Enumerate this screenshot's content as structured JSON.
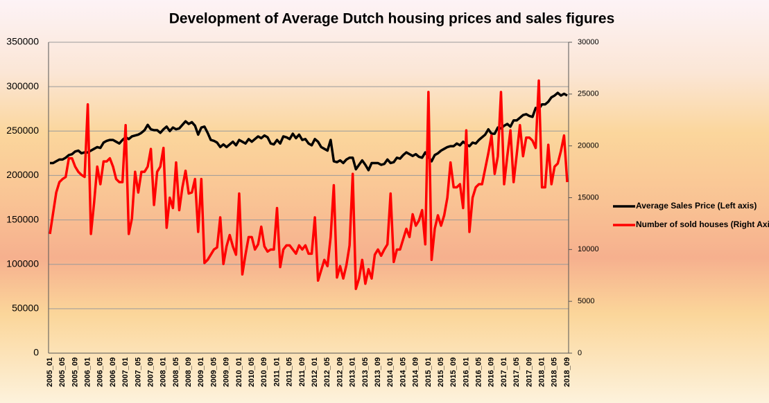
{
  "chart_data": {
    "type": "line",
    "title": "Development of Average Dutch housing prices and sales figures",
    "categories": [
      "2005_01",
      null,
      null,
      null,
      "2005_05",
      null,
      null,
      null,
      "2005_09",
      null,
      null,
      null,
      "2006_01",
      null,
      null,
      null,
      "2006_05",
      null,
      null,
      null,
      "2006_09",
      null,
      null,
      null,
      "2007_01",
      null,
      null,
      null,
      "2007_05",
      null,
      null,
      null,
      "2007_09",
      null,
      null,
      null,
      "2008_01",
      null,
      null,
      null,
      "2008_05",
      null,
      null,
      null,
      "2008_09",
      null,
      null,
      null,
      "2009_01",
      null,
      null,
      null,
      "2009_05",
      null,
      null,
      null,
      "2009_09",
      null,
      null,
      null,
      "2010_01",
      null,
      null,
      null,
      "2010_05",
      null,
      null,
      null,
      "2010_09",
      null,
      null,
      null,
      "2011_01",
      null,
      null,
      null,
      "2011_05",
      null,
      null,
      null,
      "2011_09",
      null,
      null,
      null,
      "2012_01",
      null,
      null,
      null,
      "2012_05",
      null,
      null,
      null,
      "2012_09",
      null,
      null,
      null,
      "2013_01",
      null,
      null,
      null,
      "2013_05",
      null,
      null,
      null,
      "2013_09",
      null,
      null,
      null,
      "2014_01",
      null,
      null,
      null,
      "2014_05",
      null,
      null,
      null,
      "2014_09",
      null,
      null,
      null,
      "2015_01",
      null,
      null,
      null,
      "2015_05",
      null,
      null,
      null,
      "2015_09",
      null,
      null,
      null,
      "2016_01",
      null,
      null,
      null,
      "2016_05",
      null,
      null,
      null,
      "2016_09",
      null,
      null,
      null,
      "2017_01",
      null,
      null,
      null,
      "2017_05",
      null,
      null,
      null,
      "2017_09",
      null,
      null,
      null,
      "2018_01",
      null,
      null,
      null,
      "2018_05",
      null,
      null,
      null,
      "2018_09"
    ],
    "series": [
      {
        "name": "Average Sales Price (Left axis)",
        "color": "#000000",
        "values": [
          214000,
          214000,
          216000,
          218000,
          218000,
          220000,
          223000,
          224000,
          227000,
          228000,
          225000,
          226000,
          226000,
          228000,
          230000,
          232000,
          231000,
          237000,
          239000,
          240000,
          240000,
          238000,
          236000,
          240000,
          243000,
          241000,
          244000,
          245000,
          246000,
          248000,
          251000,
          257000,
          252000,
          251000,
          251000,
          248000,
          252000,
          255000,
          250000,
          254000,
          252000,
          253000,
          257000,
          261000,
          258000,
          260000,
          256000,
          246000,
          254000,
          255000,
          248000,
          240000,
          239000,
          237000,
          232000,
          235000,
          232000,
          235000,
          238000,
          234000,
          240000,
          238000,
          236000,
          241000,
          238000,
          241000,
          244000,
          242000,
          245000,
          243000,
          236000,
          235000,
          240000,
          236000,
          244000,
          243000,
          241000,
          247000,
          242000,
          246000,
          240000,
          241000,
          236000,
          234000,
          241000,
          238000,
          232000,
          230000,
          228000,
          240000,
          216000,
          215000,
          217000,
          214000,
          218000,
          220000,
          220000,
          207000,
          212000,
          217000,
          212000,
          206000,
          214000,
          214000,
          214000,
          212000,
          213000,
          218000,
          214000,
          215000,
          220000,
          219000,
          223000,
          226000,
          224000,
          222000,
          224000,
          221000,
          220000,
          226000,
          221000,
          216000,
          223000,
          225000,
          228000,
          230000,
          232000,
          233000,
          233000,
          236000,
          234000,
          238000,
          235000,
          233000,
          237000,
          236000,
          240000,
          243000,
          246000,
          252000,
          247000,
          247000,
          254000,
          253000,
          256000,
          258000,
          255000,
          262000,
          262000,
          265000,
          268000,
          269000,
          267000,
          266000,
          276000,
          275000,
          280000,
          280000,
          283000,
          288000,
          290000,
          293000,
          290000,
          292000,
          290000
        ]
      },
      {
        "name": "Number of sold houses (Right Axis)",
        "color": "#ff0000",
        "axis": "y2",
        "values": [
          11500,
          13500,
          15500,
          16500,
          16800,
          17000,
          18800,
          18800,
          18000,
          17500,
          17200,
          17000,
          24000,
          11500,
          14500,
          18000,
          16300,
          18500,
          18500,
          18800,
          18000,
          16800,
          16500,
          16500,
          22000,
          11500,
          13000,
          17500,
          15500,
          17500,
          17500,
          18000,
          19700,
          14300,
          17500,
          18000,
          19800,
          12100,
          15000,
          14000,
          18400,
          13800,
          16000,
          17600,
          15400,
          15500,
          16800,
          11700,
          16800,
          8700,
          9000,
          9500,
          10000,
          10200,
          13100,
          8600,
          10300,
          11400,
          10300,
          9500,
          15400,
          7600,
          9500,
          11200,
          11200,
          10000,
          10500,
          12200,
          10300,
          9800,
          10000,
          10000,
          14000,
          8300,
          10000,
          10400,
          10400,
          10000,
          9600,
          10400,
          10000,
          10400,
          9600,
          9600,
          13100,
          7000,
          8000,
          9000,
          8400,
          11200,
          16200,
          7300,
          8400,
          7200,
          8500,
          10400,
          17300,
          6200,
          7200,
          9000,
          6700,
          8100,
          7200,
          9500,
          10000,
          9400,
          10000,
          10500,
          15400,
          8800,
          10000,
          10000,
          11000,
          12000,
          11200,
          13400,
          12300,
          12800,
          13800,
          10500,
          25200,
          9000,
          12000,
          13300,
          12300,
          13300,
          15000,
          18400,
          16000,
          16000,
          16300,
          14000,
          21500,
          11700,
          15000,
          16000,
          16300,
          16300,
          17800,
          19300,
          21000,
          17300,
          19000,
          25200,
          16300,
          19000,
          21500,
          16500,
          19200,
          22000,
          19000,
          20800,
          20800,
          20500,
          19800,
          26300,
          16000,
          16000,
          20100,
          16300,
          18000,
          18300,
          19500,
          21000,
          16500
        ]
      }
    ],
    "ylim": [
      0,
      350000
    ],
    "yticks": [
      0,
      50000,
      100000,
      150000,
      200000,
      250000,
      300000,
      350000
    ],
    "y2lim": [
      0,
      30000
    ],
    "y2ticks": [
      0,
      5000,
      10000,
      15000,
      20000,
      25000,
      30000
    ],
    "grid": true,
    "legend": "right"
  }
}
